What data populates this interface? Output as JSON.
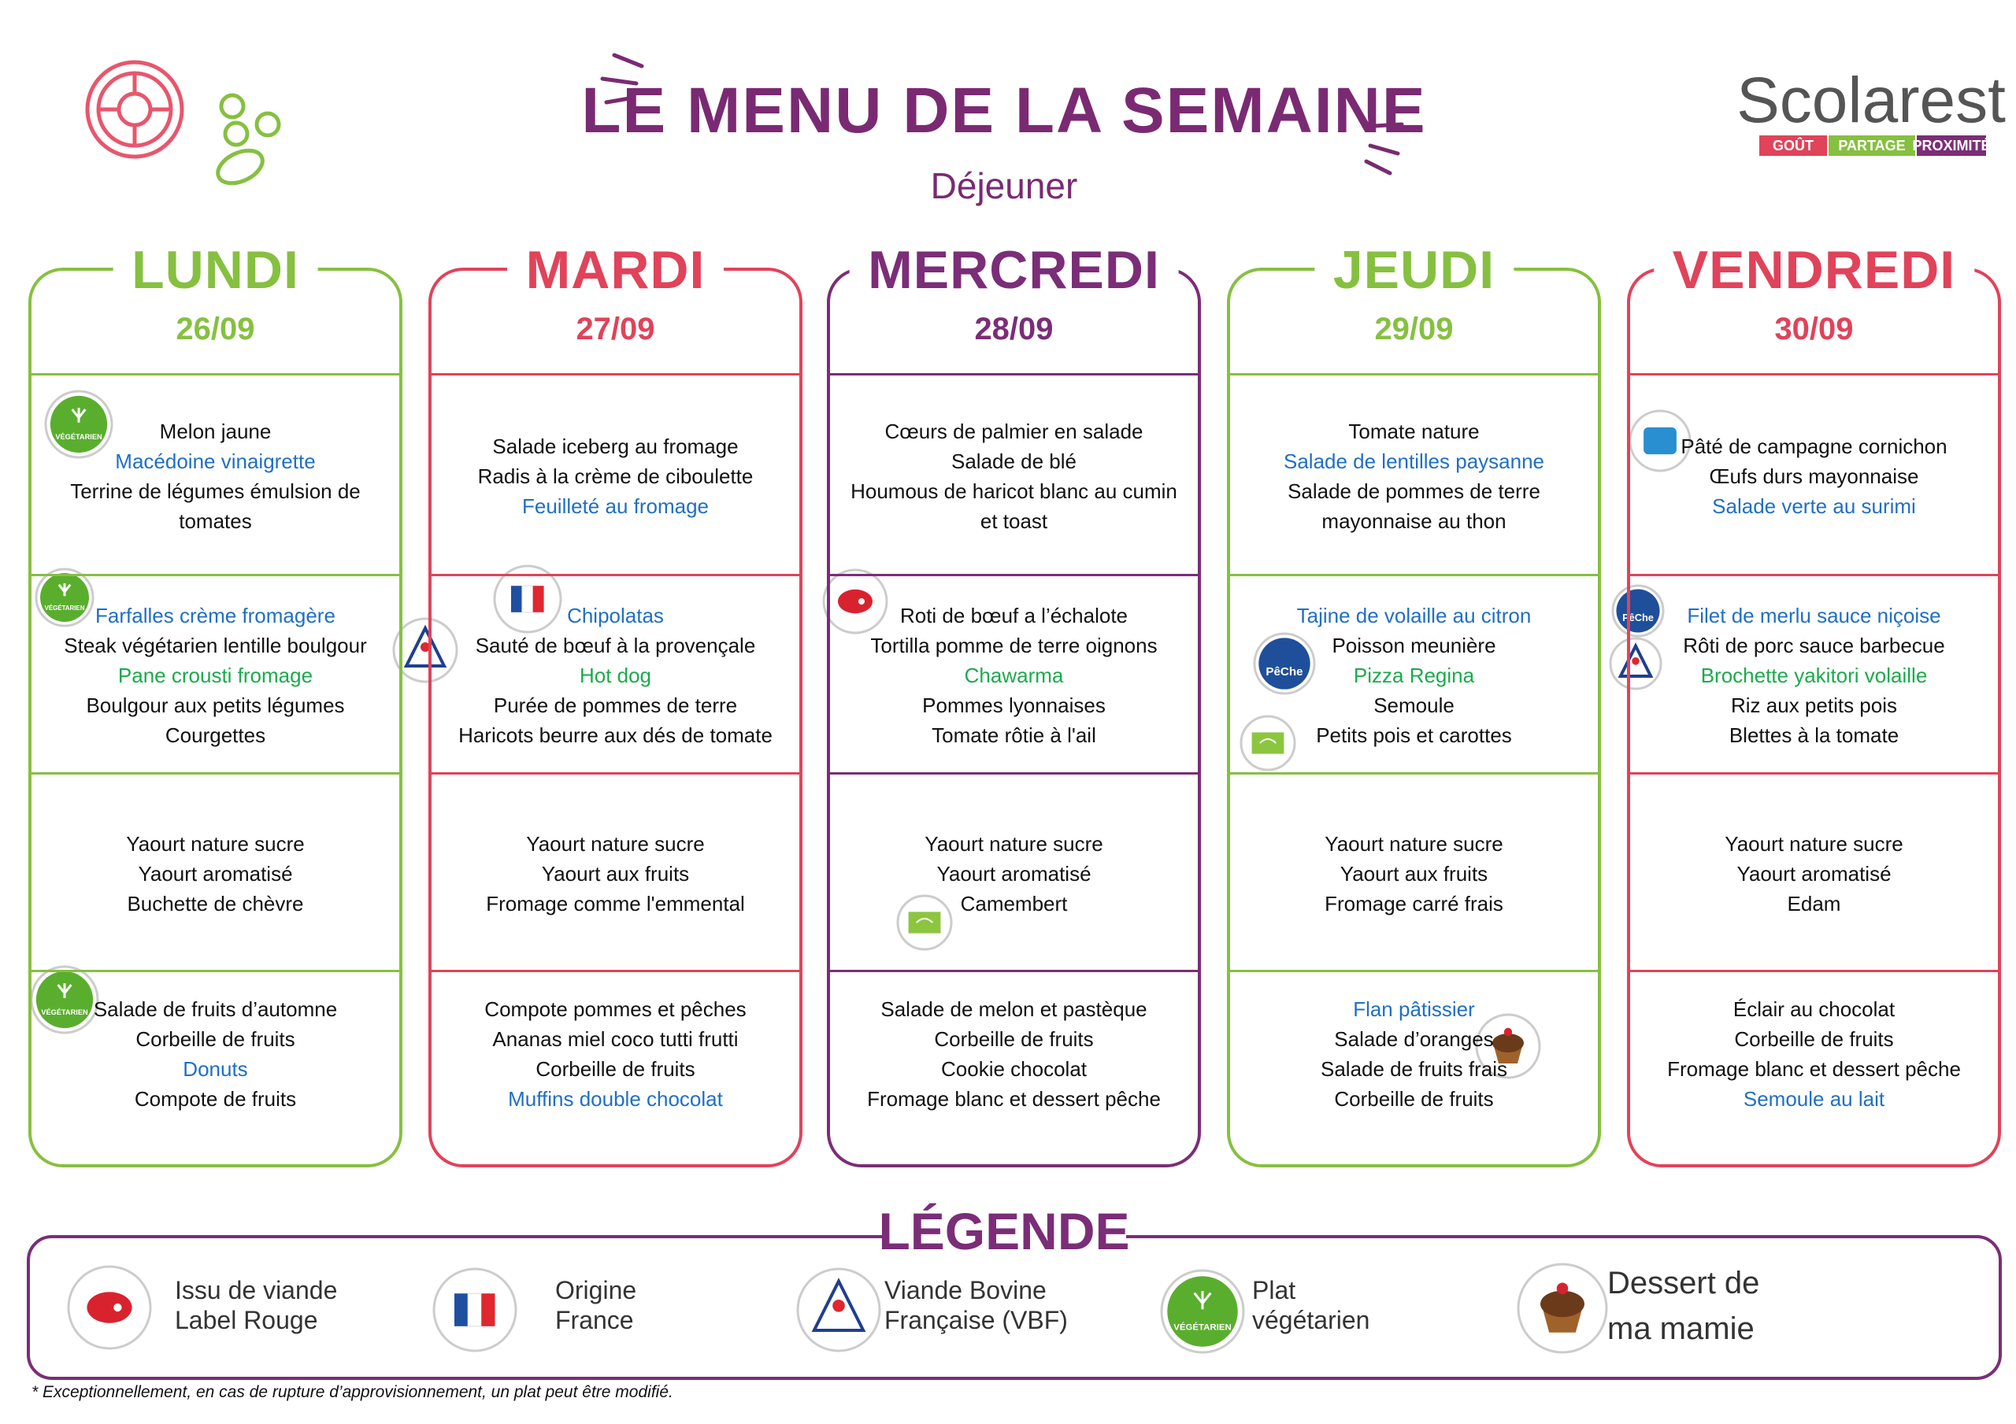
{
  "header": {
    "title": "LE MENU DE LA SEMAINE",
    "subtitle": "Déjeuner",
    "logo": {
      "name": "Scolarest",
      "tags": [
        "GOÛT",
        "PARTAGE",
        "PROXIMITÉ"
      ]
    }
  },
  "days": [
    {
      "name": "LUNDI",
      "date": "26/09",
      "color": "#86c040",
      "sections": [
        [
          {
            "text": "Melon jaune",
            "color": "#111111"
          },
          {
            "text": "Macédoine vinaigrette",
            "color": "#1f6fc5"
          },
          {
            "text": "Terrine de légumes émulsion de tomates",
            "color": "#111111"
          }
        ],
        [
          {
            "text": "Farfalles crème fromagère",
            "color": "#1f6fc5"
          },
          {
            "text": "Steak végétarien lentille boulgour",
            "color": "#111111"
          },
          {
            "text": "Pane crousti fromage",
            "color": "#1aab4b"
          },
          {
            "text": "Boulgour aux petits légumes",
            "color": "#111111"
          },
          {
            "text": "Courgettes",
            "color": "#111111"
          }
        ],
        [
          {
            "text": "Yaourt nature sucre",
            "color": "#111111"
          },
          {
            "text": "Yaourt aromatisé",
            "color": "#111111"
          },
          {
            "text": "Buchette de chèvre",
            "color": "#111111"
          }
        ],
        [
          {
            "text": "Salade de fruits d’automne",
            "color": "#111111"
          },
          {
            "text": "Corbeille de fruits",
            "color": "#111111"
          },
          {
            "text": "Donuts",
            "color": "#1f6fc5"
          },
          {
            "text": "Compote de fruits",
            "color": "#111111"
          }
        ]
      ]
    },
    {
      "name": "MARDI",
      "date": "27/09",
      "color": "#e0435a",
      "sections": [
        [
          {
            "text": "Salade iceberg au fromage",
            "color": "#111111"
          },
          {
            "text": "Radis à la crème de ciboulette",
            "color": "#111111"
          },
          {
            "text": "Feuilleté au fromage",
            "color": "#1f6fc5"
          }
        ],
        [
          {
            "text": "Chipolatas",
            "color": "#1f6fc5"
          },
          {
            "text": "Sauté de bœuf à la provençale",
            "color": "#111111"
          },
          {
            "text": "Hot dog",
            "color": "#1aab4b"
          },
          {
            "text": "Purée de pommes de terre",
            "color": "#111111"
          },
          {
            "text": "Haricots beurre aux dés de tomate",
            "color": "#111111"
          }
        ],
        [
          {
            "text": "Yaourt nature sucre",
            "color": "#111111"
          },
          {
            "text": "Yaourt aux fruits",
            "color": "#111111"
          },
          {
            "text": "Fromage comme l'emmental",
            "color": "#111111"
          }
        ],
        [
          {
            "text": "Compote pommes et pêches",
            "color": "#111111"
          },
          {
            "text": "Ananas miel coco tutti frutti",
            "color": "#111111"
          },
          {
            "text": "Corbeille de fruits",
            "color": "#111111"
          },
          {
            "text": "Muffins double chocolat",
            "color": "#1f6fc5"
          }
        ]
      ]
    },
    {
      "name": "MERCREDI",
      "date": "28/09",
      "color": "#7b2d78",
      "sections": [
        [
          {
            "text": "Cœurs de palmier en salade",
            "color": "#111111"
          },
          {
            "text": "Salade de blé",
            "color": "#111111"
          },
          {
            "text": "Houmous de haricot blanc au cumin et toast",
            "color": "#111111"
          }
        ],
        [
          {
            "text": "Roti de bœuf a l’échalote",
            "color": "#111111"
          },
          {
            "text": "Tortilla pomme de terre oignons",
            "color": "#111111"
          },
          {
            "text": "Chawarma",
            "color": "#1aab4b"
          },
          {
            "text": "Pommes lyonnaises",
            "color": "#111111"
          },
          {
            "text": "Tomate rôtie à l'ail",
            "color": "#111111"
          }
        ],
        [
          {
            "text": "Yaourt nature sucre",
            "color": "#111111"
          },
          {
            "text": "Yaourt aromatisé",
            "color": "#111111"
          },
          {
            "text": "Camembert",
            "color": "#111111"
          }
        ],
        [
          {
            "text": "Salade de melon et pastèque",
            "color": "#111111"
          },
          {
            "text": "Corbeille de fruits",
            "color": "#111111"
          },
          {
            "text": "Cookie chocolat",
            "color": "#111111"
          },
          {
            "text": "Fromage blanc et dessert pêche",
            "color": "#111111"
          }
        ]
      ]
    },
    {
      "name": "JEUDI",
      "date": "29/09",
      "color": "#86c040",
      "sections": [
        [
          {
            "text": "Tomate nature",
            "color": "#111111"
          },
          {
            "text": "Salade de lentilles paysanne",
            "color": "#1f6fc5"
          },
          {
            "text": "Salade de pommes de terre mayonnaise au thon",
            "color": "#111111"
          }
        ],
        [
          {
            "text": "Tajine de volaille au citron",
            "color": "#1f6fc5"
          },
          {
            "text": "Poisson meunière",
            "color": "#111111"
          },
          {
            "text": "Pizza Regina",
            "color": "#1aab4b"
          },
          {
            "text": "Semoule",
            "color": "#111111"
          },
          {
            "text": "Petits pois et carottes",
            "color": "#111111"
          }
        ],
        [
          {
            "text": "Yaourt nature sucre",
            "color": "#111111"
          },
          {
            "text": "Yaourt aux fruits",
            "color": "#111111"
          },
          {
            "text": "Fromage carré frais",
            "color": "#111111"
          }
        ],
        [
          {
            "text": "Flan pâtissier",
            "color": "#1f6fc5"
          },
          {
            "text": "Salade d’oranges",
            "color": "#111111"
          },
          {
            "text": "Salade de fruits frais",
            "color": "#111111"
          },
          {
            "text": "Corbeille de fruits",
            "color": "#111111"
          }
        ]
      ]
    },
    {
      "name": "VENDREDI",
      "date": "30/09",
      "color": "#e0435a",
      "sections": [
        [
          {
            "text": "Pâté de campagne cornichon",
            "color": "#111111"
          },
          {
            "text": "Œufs durs mayonnaise",
            "color": "#111111"
          },
          {
            "text": "Salade verte au surimi",
            "color": "#1f6fc5"
          }
        ],
        [
          {
            "text": "Filet de merlu sauce niçoise",
            "color": "#1f6fc5"
          },
          {
            "text": "Rôti de porc sauce barbecue",
            "color": "#111111"
          },
          {
            "text": "Brochette yakitori volaille",
            "color": "#1aab4b"
          },
          {
            "text": "Riz aux petits pois",
            "color": "#111111"
          },
          {
            "text": "Blettes à la tomate",
            "color": "#111111"
          }
        ],
        [
          {
            "text": "Yaourt nature sucre",
            "color": "#111111"
          },
          {
            "text": "Yaourt aromatisé",
            "color": "#111111"
          },
          {
            "text": "Edam",
            "color": "#111111"
          }
        ],
        [
          {
            "text": "Éclair au chocolat",
            "color": "#111111"
          },
          {
            "text": "Corbeille de fruits",
            "color": "#111111"
          },
          {
            "text": "Fromage blanc et dessert pêche",
            "color": "#111111"
          },
          {
            "text": "Semoule au lait",
            "color": "#1f6fc5"
          }
        ]
      ]
    }
  ],
  "icon_labels": {
    "vegetarien": "VÉGÉTARIEN",
    "peche": "PêChe"
  },
  "legend": {
    "title": "LÉGENDE",
    "items": [
      {
        "lines": [
          "Issu de viande",
          "Label Rouge"
        ]
      },
      {
        "lines": [
          "Origine",
          "France"
        ]
      },
      {
        "lines": [
          "Viande Bovine",
          "Française (VBF)"
        ]
      },
      {
        "lines": [
          "Plat",
          "végétarien"
        ]
      },
      {
        "lines": [
          "Dessert de",
          "ma mamie"
        ]
      }
    ]
  },
  "footnote": "* Exceptionnellement, en cas de rupture d’approvisionnement, un plat peut être modifié."
}
